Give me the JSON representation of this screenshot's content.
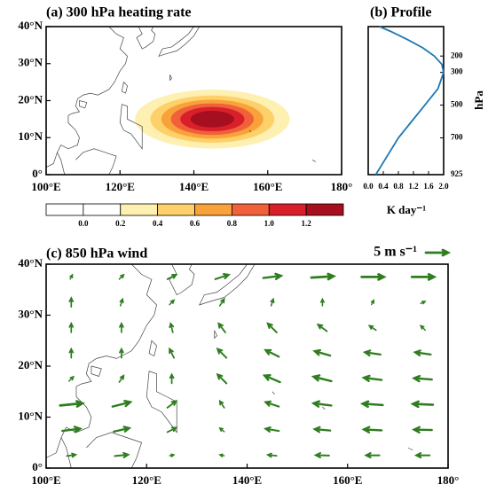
{
  "chart_data": [
    {
      "type": "heating-map",
      "title": "(a) 300 hPa heating rate",
      "xlim": [
        100,
        180
      ],
      "ylim": [
        0,
        40
      ],
      "xticks": [
        {
          "value": 100,
          "label": "100°E"
        },
        {
          "value": 120,
          "label": "120°E"
        },
        {
          "value": 140,
          "label": "140°E"
        },
        {
          "value": 160,
          "label": "160°E"
        },
        {
          "value": 180,
          "label": "180°"
        }
      ],
      "yticks": [
        {
          "value": 0,
          "label": "0°"
        },
        {
          "value": 10,
          "label": "10°N"
        },
        {
          "value": 20,
          "label": "20°N"
        },
        {
          "value": 30,
          "label": "30°N"
        },
        {
          "value": 40,
          "label": "40°N"
        }
      ],
      "field": {
        "peak": 1.4,
        "center": [
          145,
          15
        ],
        "spread": [
          15,
          5.7
        ]
      },
      "levels": [
        {
          "value": 0,
          "label": "0.0"
        },
        0.2,
        0.4,
        0.6,
        0.8,
        {
          "value": 1,
          "label": "1.0"
        },
        1.2
      ],
      "colors": [
        "#ffffff",
        "#ffffff",
        "#fdf0b0",
        "#fdd06a",
        "#f9a23a",
        "#f0603a",
        "#d8202a",
        "#a50f20"
      ]
    },
    {
      "type": "profile",
      "title": "(b) Profile",
      "xlabel": "K day⁻¹",
      "ylabel": "hPa",
      "color": "#1f77b4",
      "xlim": [
        0,
        2
      ],
      "ylim": [
        925,
        20
      ],
      "xticks": [
        {
          "value": 0,
          "label": "0.0"
        },
        0.4,
        0.8,
        1.2,
        1.6,
        {
          "value": 2,
          "label": "2.0"
        }
      ],
      "yticks": [
        200,
        300,
        500,
        700,
        925
      ],
      "levels": [
        925,
        850,
        700,
        600,
        500,
        400,
        300,
        250,
        200,
        150,
        100,
        50,
        20
      ],
      "values": [
        0.2,
        0.4,
        0.8,
        1.15,
        1.5,
        1.85,
        2.0,
        1.95,
        1.75,
        1.45,
        1.05,
        0.6,
        0.3
      ]
    },
    {
      "type": "wind-map",
      "title": "(c) 850 hPa wind",
      "color": "#2e7d1e",
      "reference": {
        "value": 5,
        "label": "5 m s⁻¹"
      },
      "xlim": [
        100,
        180
      ],
      "ylim": [
        0,
        40
      ],
      "xticks": [
        {
          "value": 100,
          "label": "100°E"
        },
        {
          "value": 120,
          "label": "120°E"
        },
        {
          "value": 140,
          "label": "140°E"
        },
        {
          "value": 160,
          "label": "160°E"
        },
        {
          "value": 180,
          "label": "180°"
        }
      ],
      "yticks": [
        {
          "value": 0,
          "label": "0°"
        },
        {
          "value": 10,
          "label": "10°N"
        },
        {
          "value": 20,
          "label": "20°N"
        },
        {
          "value": 30,
          "label": "30°N"
        },
        {
          "value": 40,
          "label": "40°N"
        }
      ],
      "lon": [
        105,
        115,
        125,
        135,
        145,
        155,
        165,
        175
      ],
      "lat": [
        2.5,
        7.5,
        12.5,
        17.5,
        22.5,
        27.5,
        32.5,
        37.5
      ],
      "u": [
        [
          2,
          3,
          1,
          -1,
          -2,
          -3,
          -3,
          -3
        ],
        [
          4,
          3.5,
          2,
          -1,
          -3,
          -3.5,
          -4,
          -4
        ],
        [
          5,
          4,
          2,
          -1,
          -3,
          -4,
          -4.5,
          -4.5
        ],
        [
          1,
          1,
          0,
          -2,
          -3.5,
          -4,
          -4,
          -4
        ],
        [
          0,
          0,
          -1,
          -2,
          -3,
          -3.5,
          -3.5,
          -3.5
        ],
        [
          0,
          0,
          -0.5,
          -1.5,
          -2,
          -2,
          -1.5,
          -1
        ],
        [
          0,
          0.5,
          1,
          1,
          0.5,
          0,
          0.5,
          1
        ],
        [
          0.5,
          1,
          2,
          3,
          4,
          5,
          5,
          5
        ]
      ],
      "v": [
        [
          0.3,
          0.3,
          0.2,
          0.2,
          0.2,
          0.1,
          0,
          0
        ],
        [
          0.5,
          0.8,
          1,
          0.8,
          0.5,
          0.3,
          0.2,
          0.1
        ],
        [
          0.5,
          1,
          1.5,
          1.5,
          1,
          0.5,
          0.3,
          0.2
        ],
        [
          1,
          1.5,
          2,
          2,
          1.5,
          1,
          0.5,
          0.3
        ],
        [
          2,
          2,
          2,
          2,
          1.5,
          1,
          0.5,
          0.5
        ],
        [
          2,
          2,
          2,
          2,
          2,
          1.5,
          1,
          1
        ],
        [
          2,
          1.5,
          1,
          1.5,
          1.5,
          1.5,
          1,
          0.5
        ],
        [
          1,
          1,
          1,
          1,
          0.5,
          0.3,
          0,
          0
        ]
      ]
    }
  ]
}
